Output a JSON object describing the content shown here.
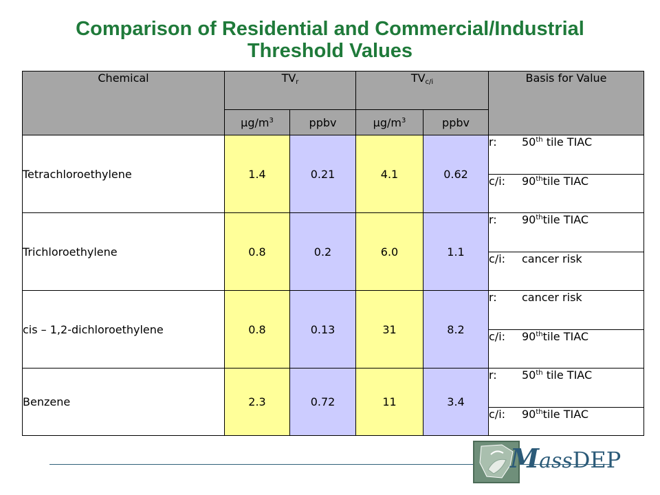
{
  "title": {
    "line1": "Comparison of Residential and Commercial/Industrial",
    "line2": "Threshold Values"
  },
  "headers": {
    "chemical": "Chemical",
    "tv_r_base": "TV",
    "tv_r_sub": "r",
    "tv_ci_base": "TV",
    "tv_ci_sub": "c/i",
    "basis": "Basis for Value",
    "unit_ugm3_base": "µg/m",
    "unit_ugm3_sup": "3",
    "unit_ppbv": "ppbv"
  },
  "rows": [
    {
      "chemical": "Tetrachloroethylene",
      "r_ugm3": "1.4",
      "r_ppbv": "0.21",
      "ci_ugm3": "4.1",
      "ci_ppbv": "0.62",
      "basis_r": {
        "prefix": "r:",
        "num": "50",
        "sup": "th",
        "rest": " tile TIAC"
      },
      "basis_ci": {
        "prefix": "c/i:",
        "num": "90",
        "sup": "th",
        "rest": "tile TIAC"
      }
    },
    {
      "chemical": "Trichloroethylene",
      "r_ugm3": "0.8",
      "r_ppbv": "0.2",
      "ci_ugm3": "6.0",
      "ci_ppbv": "1.1",
      "basis_r": {
        "prefix": "r:",
        "num": "90",
        "sup": "th",
        "rest": "tile TIAC"
      },
      "basis_ci": {
        "prefix": "c/i:",
        "text": "cancer risk"
      }
    },
    {
      "chemical": "cis – 1,2-dichloroethylene",
      "r_ugm3": "0.8",
      "r_ppbv": "0.13",
      "ci_ugm3": "31",
      "ci_ppbv": "8.2",
      "basis_r": {
        "prefix": "r:",
        "text": "cancer risk"
      },
      "basis_ci": {
        "prefix": "c/i:",
        "num": "90",
        "sup": "th",
        "rest": "tile TIAC"
      }
    },
    {
      "chemical": "Benzene",
      "r_ugm3": "2.3",
      "r_ppbv": "0.72",
      "ci_ugm3": "11",
      "ci_ppbv": "3.4",
      "basis_r": {
        "prefix": "r:",
        "num": "50",
        "sup": "th",
        "rest": " tile TIAC"
      },
      "basis_ci": {
        "prefix": "c/i:",
        "num": "90",
        "sup": "th",
        "rest": "tile TIAC"
      }
    }
  ],
  "logo": {
    "m": "M",
    "ass": "ass",
    "dep": "DEP"
  },
  "colors": {
    "title": "#1f7a3a",
    "header_bg": "#a6a6a6",
    "residential_fill": "#ffff99",
    "commercial_fill": "#ccccff",
    "logo_text": "#2b5a78"
  }
}
